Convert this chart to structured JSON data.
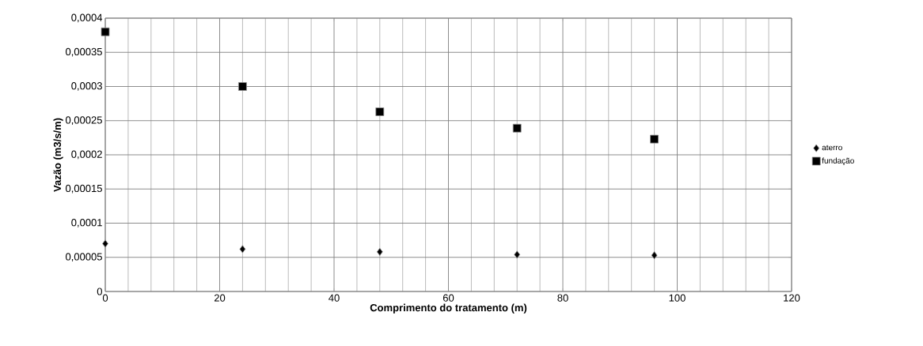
{
  "chart_data": {
    "type": "scatter",
    "xlabel": "Comprimento do tratamento (m)",
    "ylabel": "Vazão (m3/s/m)",
    "x": [
      0,
      24,
      48,
      72,
      96
    ],
    "series": [
      {
        "name": "aterro",
        "color": "#000000",
        "marker": "diamond",
        "values": [
          7e-05,
          6.2e-05,
          5.8e-05,
          5.4e-05,
          5.3e-05
        ]
      },
      {
        "name": "fundação",
        "color": "#000000",
        "marker": "square",
        "values": [
          0.00038,
          0.0003,
          0.000263,
          0.000239,
          0.000223
        ]
      }
    ],
    "xlim": [
      0,
      120
    ],
    "xticks": [
      0,
      20,
      40,
      60,
      80,
      100,
      120
    ],
    "ylim": [
      0,
      0.0004
    ],
    "yticks": [
      {
        "value": 0,
        "label": "0"
      },
      {
        "value": 5e-05,
        "label": "0,00005"
      },
      {
        "value": 0.0001,
        "label": "0,0001"
      },
      {
        "value": 0.00015,
        "label": "0,00015"
      },
      {
        "value": 0.0002,
        "label": "0,0002"
      },
      {
        "value": 0.00025,
        "label": "0,00025"
      },
      {
        "value": 0.0003,
        "label": "0,0003"
      },
      {
        "value": 0.00035,
        "label": "0,00035"
      },
      {
        "value": 0.0004,
        "label": "0,0004"
      }
    ],
    "grid": true,
    "legend": "right"
  }
}
